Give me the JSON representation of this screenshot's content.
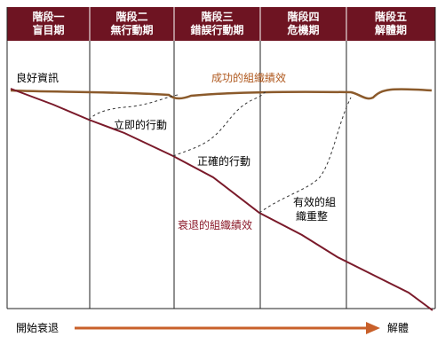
{
  "stages": [
    {
      "name": "階段一",
      "label": "盲目期"
    },
    {
      "name": "階段二",
      "label": "無行動期"
    },
    {
      "name": "階段三",
      "label": "錯誤行動期"
    },
    {
      "name": "階段四",
      "label": "危機期"
    },
    {
      "name": "階段五",
      "label": "解體期"
    }
  ],
  "labels": {
    "good_info": "良好資訊",
    "success": "成功的組織績效",
    "immediate": "立即的行動",
    "correct": "正確的行動",
    "effective": [
      "有效的組",
      "織重整"
    ],
    "decline": "衰退的組織績效"
  },
  "axis": {
    "start": "開始衰退",
    "end": "解體"
  }
}
